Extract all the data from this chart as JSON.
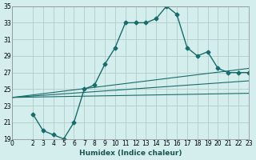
{
  "xlabel": "Humidex (Indice chaleur)",
  "bg_color": "#d4eeed",
  "grid_color": "#b0cccb",
  "line_color": "#1a6b6b",
  "xlim": [
    0,
    23
  ],
  "ylim": [
    19,
    35
  ],
  "xticks": [
    0,
    2,
    3,
    4,
    5,
    6,
    7,
    8,
    9,
    10,
    11,
    12,
    13,
    14,
    15,
    16,
    17,
    18,
    19,
    20,
    21,
    22,
    23
  ],
  "yticks": [
    19,
    21,
    23,
    25,
    27,
    29,
    31,
    33,
    35
  ],
  "main_x": [
    2,
    3,
    4,
    5,
    6,
    7,
    8,
    9,
    10,
    11,
    12,
    13,
    14,
    15,
    16,
    17,
    18,
    19,
    20,
    21,
    22,
    23
  ],
  "main_y": [
    22,
    20,
    19.5,
    19,
    21,
    25,
    25.5,
    28,
    30,
    33,
    33,
    33,
    33.5,
    35,
    34,
    30,
    29,
    29.5,
    27.5,
    27,
    27,
    27
  ],
  "straight_lines": [
    {
      "x": [
        0,
        23
      ],
      "y": [
        24,
        27.5
      ]
    },
    {
      "x": [
        0,
        23
      ],
      "y": [
        24,
        26.0
      ]
    },
    {
      "x": [
        0,
        23
      ],
      "y": [
        24,
        24.5
      ]
    }
  ]
}
